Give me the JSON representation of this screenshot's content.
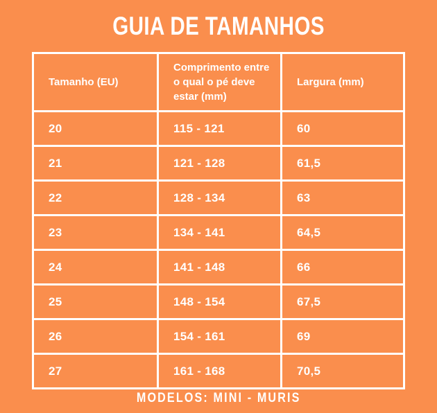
{
  "page": {
    "background_color": "#FA8E4D",
    "text_color": "#FFFFFF",
    "border_color": "#FFFFFF"
  },
  "title": "GUIA DE TAMANHOS",
  "table": {
    "headers": [
      "Tamanho (EU)",
      "Comprimento entre o qual o pé deve estar (mm)",
      "Largura (mm)"
    ],
    "rows": [
      [
        "20",
        "115 - 121",
        "60"
      ],
      [
        "21",
        "121 - 128",
        "61,5"
      ],
      [
        "22",
        "128 - 134",
        "63"
      ],
      [
        "23",
        "134 - 141",
        "64,5"
      ],
      [
        "24",
        "141 - 148",
        "66"
      ],
      [
        "25",
        "148 - 154",
        "67,5"
      ],
      [
        "26",
        "154 - 161",
        "69"
      ],
      [
        "27",
        "161 - 168",
        "70,5"
      ]
    ]
  },
  "footer": "MODELOS: MINI - MURIS"
}
